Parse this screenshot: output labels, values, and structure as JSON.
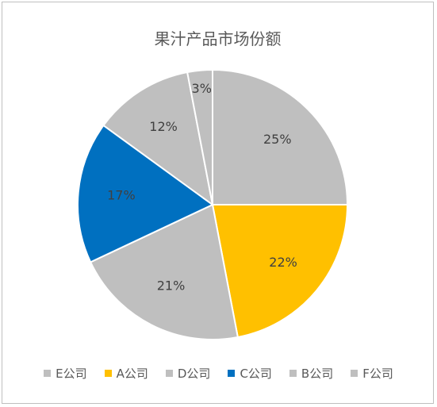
{
  "chart_data": {
    "type": "pie",
    "title": "果汁产品市场份额",
    "categories": [
      "E公司",
      "A公司",
      "D公司",
      "C公司",
      "B公司",
      "F公司"
    ],
    "values": [
      25,
      22,
      21,
      17,
      12,
      3
    ],
    "labels": [
      "25%",
      "22%",
      "21%",
      "17%",
      "12%",
      "3%"
    ],
    "colors": [
      "#bfbfbf",
      "#ffc000",
      "#bfbfbf",
      "#0070c0",
      "#bfbfbf",
      "#bfbfbf"
    ],
    "legend_position": "bottom"
  }
}
